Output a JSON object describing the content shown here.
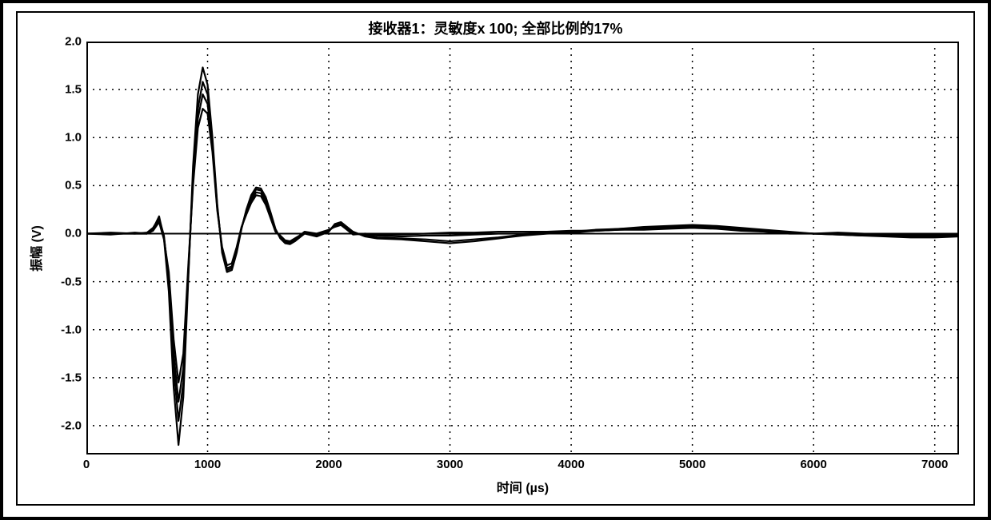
{
  "chart": {
    "type": "line",
    "title": "接收器1：灵敏度x 100; 全部比例的17%",
    "xlabel": "时间 (µs)",
    "ylabel": "振幅 (V)",
    "xlim": [
      0,
      7200
    ],
    "ylim": [
      -2.3,
      2.0
    ],
    "xticks": [
      0,
      1000,
      2000,
      3000,
      4000,
      5000,
      6000,
      7000
    ],
    "yticks": [
      -2.0,
      -1.5,
      -1.0,
      -0.5,
      0.0,
      0.5,
      1.0,
      1.5,
      2.0
    ],
    "background_color": "#ffffff",
    "border_color": "#000000",
    "grid_color": "#000000",
    "title_fontsize": 18,
    "label_fontsize": 16,
    "tick_fontsize": 15,
    "trace_colors": [
      "#000000",
      "#000000",
      "#000000",
      "#000000"
    ],
    "line_width": 2.2,
    "series": [
      {
        "name": "s1",
        "x": [
          0,
          200,
          400,
          500,
          550,
          600,
          640,
          680,
          720,
          760,
          800,
          840,
          880,
          920,
          960,
          1000,
          1040,
          1080,
          1120,
          1160,
          1200,
          1240,
          1280,
          1320,
          1360,
          1400,
          1440,
          1480,
          1520,
          1560,
          1600,
          1640,
          1680,
          1720,
          1760,
          1800,
          1900,
          2000,
          2050,
          2100,
          2200,
          2300,
          2400,
          2600,
          2800,
          3000,
          3200,
          3400,
          3600,
          3800,
          4000,
          4200,
          4400,
          4600,
          4800,
          5000,
          5200,
          5400,
          5600,
          5800,
          6000,
          6200,
          6400,
          6600,
          6800,
          7000,
          7200
        ],
        "y": [
          0.0,
          0.0,
          0.0,
          0.0,
          0.05,
          0.18,
          -0.05,
          -0.6,
          -1.6,
          -2.2,
          -1.7,
          -0.5,
          0.7,
          1.45,
          1.73,
          1.55,
          1.0,
          0.3,
          -0.2,
          -0.4,
          -0.38,
          -0.2,
          0.05,
          0.25,
          0.4,
          0.48,
          0.47,
          0.38,
          0.22,
          0.05,
          -0.05,
          -0.1,
          -0.11,
          -0.08,
          -0.04,
          0.0,
          -0.03,
          0.02,
          0.1,
          0.12,
          0.02,
          -0.03,
          -0.05,
          -0.06,
          -0.08,
          -0.1,
          -0.08,
          -0.05,
          -0.02,
          0.0,
          0.01,
          0.03,
          0.05,
          0.07,
          0.08,
          0.09,
          0.08,
          0.06,
          0.04,
          0.02,
          0.0,
          -0.01,
          -0.02,
          -0.03,
          -0.04,
          -0.04,
          -0.03
        ]
      },
      {
        "name": "s2",
        "x": [
          0,
          200,
          400,
          500,
          550,
          600,
          640,
          680,
          720,
          760,
          800,
          840,
          880,
          920,
          960,
          1000,
          1040,
          1080,
          1120,
          1160,
          1200,
          1240,
          1280,
          1320,
          1360,
          1400,
          1440,
          1480,
          1520,
          1560,
          1600,
          1640,
          1680,
          1720,
          1760,
          1800,
          1900,
          2000,
          2050,
          2100,
          2200,
          2300,
          2400,
          2600,
          2800,
          3000,
          3200,
          3400,
          3600,
          3800,
          4000,
          4200,
          4400,
          4600,
          4800,
          5000,
          5200,
          5400,
          5600,
          5800,
          6000,
          6200,
          6400,
          6600,
          6800,
          7000,
          7200
        ],
        "y": [
          0.0,
          0.01,
          0.0,
          0.01,
          0.06,
          0.16,
          -0.02,
          -0.5,
          -1.4,
          -1.95,
          -1.55,
          -0.45,
          0.6,
          1.3,
          1.58,
          1.45,
          0.95,
          0.28,
          -0.18,
          -0.38,
          -0.36,
          -0.18,
          0.06,
          0.24,
          0.38,
          0.46,
          0.45,
          0.36,
          0.2,
          0.04,
          -0.04,
          -0.09,
          -0.1,
          -0.07,
          -0.03,
          0.01,
          -0.02,
          0.03,
          0.09,
          0.11,
          0.01,
          -0.02,
          -0.04,
          -0.05,
          -0.06,
          -0.08,
          -0.06,
          -0.04,
          -0.01,
          0.01,
          0.02,
          0.04,
          0.05,
          0.06,
          0.07,
          0.08,
          0.07,
          0.05,
          0.03,
          0.01,
          0.0,
          -0.01,
          -0.02,
          -0.02,
          -0.03,
          -0.03,
          -0.02
        ]
      },
      {
        "name": "s3",
        "x": [
          0,
          200,
          400,
          500,
          550,
          600,
          640,
          680,
          720,
          760,
          800,
          840,
          880,
          920,
          960,
          1000,
          1040,
          1080,
          1120,
          1160,
          1200,
          1240,
          1280,
          1320,
          1360,
          1400,
          1440,
          1480,
          1520,
          1560,
          1600,
          1640,
          1680,
          1720,
          1760,
          1800,
          1900,
          2000,
          2050,
          2100,
          2200,
          2300,
          2400,
          2600,
          2800,
          3000,
          3200,
          3400,
          3600,
          3800,
          4000,
          4200,
          4400,
          4600,
          4800,
          5000,
          5200,
          5400,
          5600,
          5800,
          6000,
          6200,
          6400,
          6600,
          6800,
          7000,
          7200
        ],
        "y": [
          0.0,
          0.0,
          0.0,
          0.0,
          0.04,
          0.14,
          -0.04,
          -0.45,
          -1.25,
          -1.75,
          -1.4,
          -0.4,
          0.55,
          1.2,
          1.45,
          1.35,
          0.9,
          0.26,
          -0.16,
          -0.36,
          -0.34,
          -0.16,
          0.06,
          0.22,
          0.35,
          0.43,
          0.42,
          0.33,
          0.18,
          0.03,
          -0.03,
          -0.08,
          -0.09,
          -0.06,
          -0.02,
          0.01,
          -0.01,
          0.03,
          0.08,
          0.1,
          0.0,
          -0.01,
          -0.02,
          -0.03,
          -0.02,
          -0.02,
          -0.01,
          0.0,
          0.0,
          0.01,
          0.02,
          0.03,
          0.04,
          0.05,
          0.06,
          0.07,
          0.06,
          0.04,
          0.02,
          0.01,
          0.0,
          0.0,
          -0.01,
          -0.01,
          -0.02,
          -0.02,
          -0.01
        ]
      },
      {
        "name": "s4",
        "x": [
          0,
          200,
          400,
          500,
          550,
          600,
          640,
          680,
          720,
          760,
          800,
          840,
          880,
          920,
          960,
          1000,
          1040,
          1080,
          1120,
          1160,
          1200,
          1240,
          1280,
          1320,
          1360,
          1400,
          1440,
          1480,
          1520,
          1560,
          1600,
          1640,
          1680,
          1720,
          1760,
          1800,
          1900,
          2000,
          2050,
          2100,
          2200,
          2300,
          2400,
          2600,
          2800,
          3000,
          3200,
          3400,
          3600,
          3800,
          4000,
          4200,
          4400,
          4600,
          4800,
          5000,
          5200,
          5400,
          5600,
          5800,
          6000,
          6200,
          6400,
          6600,
          6800,
          7000,
          7200
        ],
        "y": [
          0.0,
          -0.01,
          0.01,
          0.0,
          0.03,
          0.12,
          -0.06,
          -0.4,
          -1.1,
          -1.55,
          -1.25,
          -0.35,
          0.5,
          1.1,
          1.3,
          1.25,
          0.85,
          0.24,
          -0.14,
          -0.33,
          -0.31,
          -0.14,
          0.07,
          0.2,
          0.32,
          0.4,
          0.39,
          0.3,
          0.16,
          0.02,
          -0.02,
          -0.07,
          -0.08,
          -0.05,
          -0.02,
          0.02,
          0.0,
          0.04,
          0.07,
          0.09,
          -0.01,
          0.0,
          -0.01,
          -0.01,
          0.0,
          0.01,
          0.01,
          0.02,
          0.02,
          0.02,
          0.03,
          0.03,
          0.04,
          0.04,
          0.05,
          0.06,
          0.05,
          0.03,
          0.02,
          0.0,
          0.0,
          0.01,
          0.0,
          -0.01,
          -0.01,
          -0.01,
          0.0
        ]
      }
    ]
  }
}
